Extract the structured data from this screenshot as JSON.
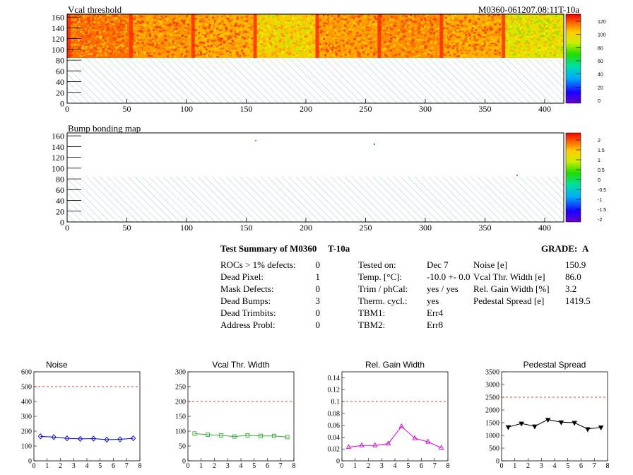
{
  "header": {
    "run_label": "M0360-061207.08:11T-10a"
  },
  "maps": [
    {
      "title": "Vcal threshold",
      "y_ticks": [
        "160",
        "140",
        "120",
        "100",
        "80",
        "60",
        "40",
        "20",
        "0"
      ],
      "x_ticks": [
        "0",
        "50",
        "100",
        "150",
        "200",
        "250",
        "300",
        "350",
        "400"
      ],
      "palette_ticks": [
        "120",
        "100",
        "80",
        "60",
        "40",
        "20",
        "0"
      ]
    },
    {
      "title": "Bump bonding map",
      "y_ticks": [
        "160",
        "140",
        "120",
        "100",
        "80",
        "60",
        "40",
        "20",
        "0"
      ],
      "x_ticks": [
        "0",
        "50",
        "100",
        "150",
        "200",
        "250",
        "300",
        "350",
        "400"
      ],
      "palette_ticks": [
        "2",
        "1.5",
        "1",
        "0.5",
        "0",
        "-0.5",
        "-1",
        "-1.5",
        "-2"
      ]
    }
  ],
  "summary": {
    "title": "Test Summary of M0360",
    "test_label": "T-10a",
    "grade_label": "GRADE:",
    "grade": "A",
    "col1": [
      {
        "label": "ROCs > 1% defects:",
        "value": "0"
      },
      {
        "label": "Dead Pixel:",
        "value": "1"
      },
      {
        "label": "Mask Defects:",
        "value": "0"
      },
      {
        "label": "Dead Bumps:",
        "value": "3"
      },
      {
        "label": "Dead Trimbits:",
        "value": "0"
      },
      {
        "label": "Address Probl:",
        "value": "0"
      }
    ],
    "col2": [
      {
        "label": "Tested on:",
        "value": "Dec 7"
      },
      {
        "label": "Temp. [°C]:",
        "value": "-10.0 +- 0.0"
      },
      {
        "label": "Trim / phCal:",
        "value": "yes / yes"
      },
      {
        "label": "Therm. cycl.:",
        "value": "yes"
      },
      {
        "label": "TBM1:",
        "value": "Err4"
      },
      {
        "label": "TBM2:",
        "value": "Err8"
      }
    ],
    "col3": [
      {
        "label": "Noise [e]",
        "value": "150.9"
      },
      {
        "label": "Vcal Thr. Width [e]",
        "value": "86.0"
      },
      {
        "label": "Rel. Gain Width [%]",
        "value": "3.2"
      },
      {
        "label": "Pedestal Spread [e]",
        "value": "1419.5"
      }
    ]
  },
  "chart_data": [
    {
      "type": "line",
      "title": "Noise",
      "color": "#0000cc",
      "marker": "diamond",
      "x": [
        0.5,
        1.5,
        2.5,
        3.5,
        4.5,
        5.5,
        6.5,
        7.5
      ],
      "values": [
        165,
        160,
        152,
        148,
        150,
        143,
        145,
        152
      ],
      "ylim": [
        0,
        600
      ],
      "xlim": [
        0,
        8
      ],
      "limit": 500,
      "yticks": [
        "600",
        "500",
        "400",
        "300",
        "200",
        "100",
        "0"
      ],
      "xticks": [
        "0",
        "1",
        "2",
        "3",
        "4",
        "5",
        "6",
        "7",
        "8"
      ]
    },
    {
      "type": "line",
      "title": "Vcal Thr. Width",
      "color": "#33aa33",
      "marker": "square",
      "x": [
        0.5,
        1.5,
        2.5,
        3.5,
        4.5,
        5.5,
        6.5,
        7.5
      ],
      "values": [
        92,
        88,
        86,
        82,
        86,
        84,
        84,
        80
      ],
      "ylim": [
        0,
        300
      ],
      "xlim": [
        0,
        8
      ],
      "limit": 200,
      "yticks": [
        "300",
        "250",
        "200",
        "150",
        "100",
        "50",
        "0"
      ],
      "xticks": [
        "0",
        "1",
        "2",
        "3",
        "4",
        "5",
        "6",
        "7",
        "8"
      ]
    },
    {
      "type": "line",
      "title": "Rel. Gain Width",
      "color": "#dd00dd",
      "marker": "triangle",
      "x": [
        0.5,
        1.5,
        2.5,
        3.5,
        4.5,
        5.5,
        6.5,
        7.5
      ],
      "values": [
        0.023,
        0.026,
        0.026,
        0.029,
        0.058,
        0.038,
        0.032,
        0.022
      ],
      "ylim": [
        0,
        0.15
      ],
      "xlim": [
        0,
        8
      ],
      "limit": 0.1,
      "yticks": [
        "0.14",
        "0.12",
        "0.1",
        "0.08",
        "0.06",
        "0.04",
        "0.02",
        "0"
      ],
      "xticks": [
        "0",
        "1",
        "2",
        "3",
        "4",
        "5",
        "6",
        "7",
        "8"
      ]
    },
    {
      "type": "line",
      "title": "Pedestal Spread",
      "color": "#000000",
      "marker": "triangle-down",
      "x": [
        0.5,
        1.5,
        2.5,
        3.5,
        4.5,
        5.5,
        6.5,
        7.5
      ],
      "values": [
        1330,
        1470,
        1360,
        1620,
        1520,
        1500,
        1250,
        1320
      ],
      "ylim": [
        0,
        3500
      ],
      "xlim": [
        0,
        8
      ],
      "limit": 2500,
      "yticks": [
        "3500",
        "3000",
        "2500",
        "2000",
        "1500",
        "1000",
        "500",
        "0"
      ],
      "xticks": [
        "0",
        "1",
        "2",
        "3",
        "4",
        "5",
        "6",
        "7",
        "8"
      ]
    }
  ]
}
